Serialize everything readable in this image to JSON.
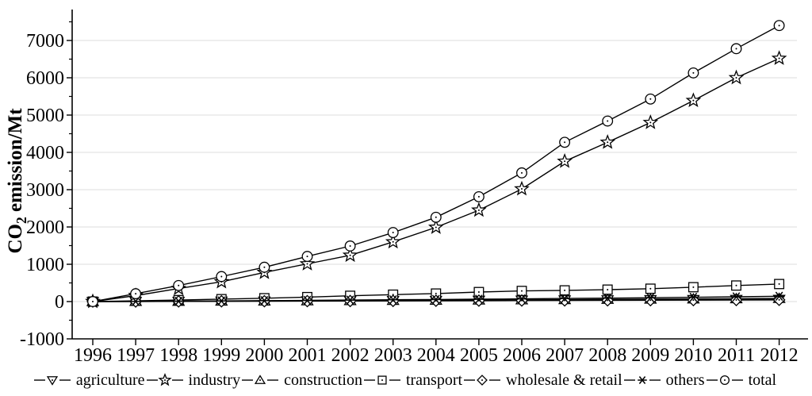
{
  "chart_data": {
    "type": "line",
    "title": "",
    "ylabel_pre": "CO",
    "ylabel_sub": "2",
    "ylabel_post": " emission/Mt",
    "xlabel": "",
    "x": [
      1996,
      1997,
      1998,
      1999,
      2000,
      2001,
      2002,
      2003,
      2004,
      2005,
      2006,
      2007,
      2008,
      2009,
      2010,
      2011,
      2012
    ],
    "ylim": [
      -1000,
      7800
    ],
    "yticks": [
      -1000,
      0,
      1000,
      2000,
      3000,
      4000,
      5000,
      6000,
      7000
    ],
    "grid": "horizontal-light",
    "legend_position": "bottom",
    "line_color": "#000000",
    "grid_color": "#dcdcdc",
    "background_color": "#ffffff",
    "series": [
      {
        "name": "agriculture",
        "marker": "triangle-down",
        "values": [
          0,
          4,
          8,
          12,
          16,
          20,
          24,
          28,
          32,
          36,
          40,
          44,
          48,
          52,
          55,
          58,
          61
        ]
      },
      {
        "name": "industry",
        "marker": "star",
        "values": [
          0,
          160,
          350,
          530,
          780,
          1010,
          1240,
          1600,
          1990,
          2450,
          3020,
          3760,
          4270,
          4800,
          5390,
          6000,
          6520
        ]
      },
      {
        "name": "construction",
        "marker": "triangle-up",
        "values": [
          0,
          3,
          7,
          11,
          15,
          19,
          24,
          29,
          34,
          40,
          46,
          52,
          58,
          64,
          70,
          76,
          82
        ]
      },
      {
        "name": "transport",
        "marker": "square",
        "values": [
          0,
          20,
          40,
          65,
          90,
          120,
          155,
          185,
          215,
          255,
          285,
          300,
          320,
          345,
          385,
          430,
          470
        ]
      },
      {
        "name": "wholesale & retail",
        "marker": "diamond",
        "values": [
          0,
          2,
          4,
          7,
          9,
          12,
          15,
          18,
          21,
          24,
          27,
          30,
          33,
          36,
          39,
          42,
          45
        ]
      },
      {
        "name": "others",
        "marker": "asterisk",
        "values": [
          0,
          5,
          10,
          18,
          25,
          32,
          40,
          48,
          56,
          64,
          73,
          82,
          92,
          103,
          115,
          128,
          142
        ]
      },
      {
        "name": "total",
        "marker": "circle",
        "values": [
          0,
          210,
          430,
          670,
          920,
          1210,
          1490,
          1850,
          2260,
          2810,
          3450,
          4270,
          4840,
          5430,
          6130,
          6780,
          7400
        ]
      }
    ]
  }
}
